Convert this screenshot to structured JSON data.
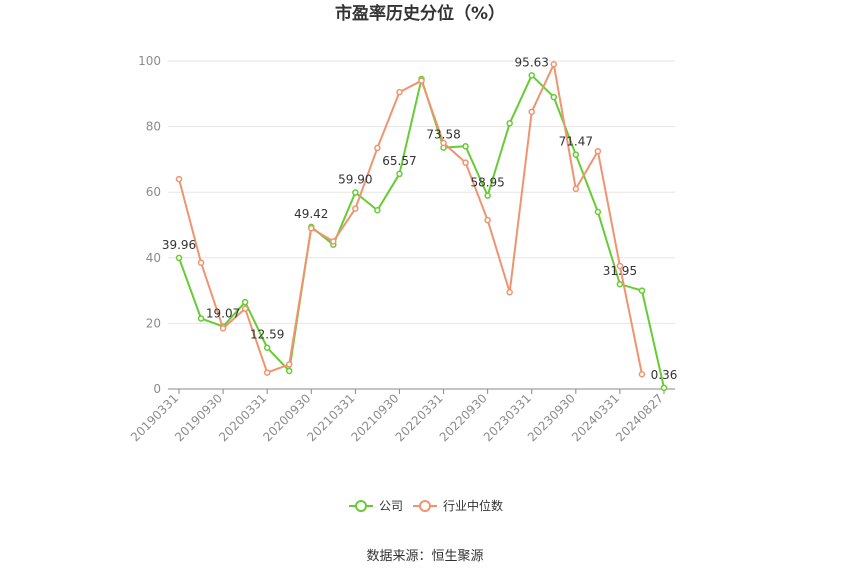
{
  "chart_data": {
    "type": "line",
    "title": "市盈率历史分位（%）",
    "source_text": "数据来源：恒生聚源",
    "ylim": [
      0,
      100
    ],
    "yticks": [
      0,
      20,
      40,
      60,
      80,
      100
    ],
    "grid": true,
    "legend_position": "bottom",
    "x_labels": [
      "20190331",
      "20190930",
      "20200331",
      "20200930",
      "20210331",
      "20210930",
      "20220331",
      "20220930",
      "20230331",
      "20230930",
      "20240331",
      "20240827"
    ],
    "label_every": 2,
    "series": [
      {
        "name": "公司",
        "color": "#66cc33",
        "values": [
          39.96,
          21.5,
          19.07,
          26.5,
          12.59,
          5.5,
          49.42,
          44.0,
          59.9,
          54.5,
          65.57,
          94.5,
          73.58,
          74.0,
          58.95,
          81.0,
          95.63,
          89.0,
          71.47,
          54.0,
          31.95,
          30.0,
          0.36
        ]
      },
      {
        "name": "行业中位数",
        "color": "#f09470",
        "values": [
          64.0,
          38.5,
          18.5,
          24.5,
          5.0,
          7.5,
          49.0,
          45.0,
          55.0,
          73.5,
          90.5,
          94.0,
          75.0,
          69.0,
          51.5,
          29.5,
          84.5,
          99.0,
          61.0,
          72.5,
          37.5,
          4.5,
          null
        ]
      }
    ],
    "data_labels": [
      {
        "index": 0,
        "text": "39.96"
      },
      {
        "index": 2,
        "text": "19.07"
      },
      {
        "index": 4,
        "text": "12.59"
      },
      {
        "index": 6,
        "text": "49.42"
      },
      {
        "index": 8,
        "text": "59.90"
      },
      {
        "index": 10,
        "text": "65.57"
      },
      {
        "index": 12,
        "text": "73.58"
      },
      {
        "index": 14,
        "text": "58.95"
      },
      {
        "index": 16,
        "text": "95.63"
      },
      {
        "index": 18,
        "text": "71.47"
      },
      {
        "index": 20,
        "text": "31.95"
      },
      {
        "index": 22,
        "text": "0.36"
      }
    ]
  }
}
